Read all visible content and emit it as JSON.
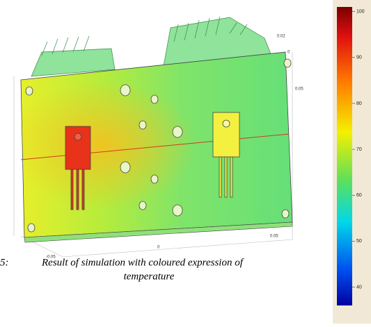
{
  "figure": {
    "axis_labels": [
      "0.02",
      "0",
      "0.05",
      "0.05",
      "0",
      "-0.05"
    ],
    "colorbar": {
      "range": [
        36,
        101
      ],
      "ticks": [
        100,
        90,
        80,
        70,
        60,
        50,
        40
      ]
    },
    "caption": {
      "number": "5:",
      "lines": [
        "Result of simulation with coloured expression of",
        "temperature"
      ]
    }
  }
}
